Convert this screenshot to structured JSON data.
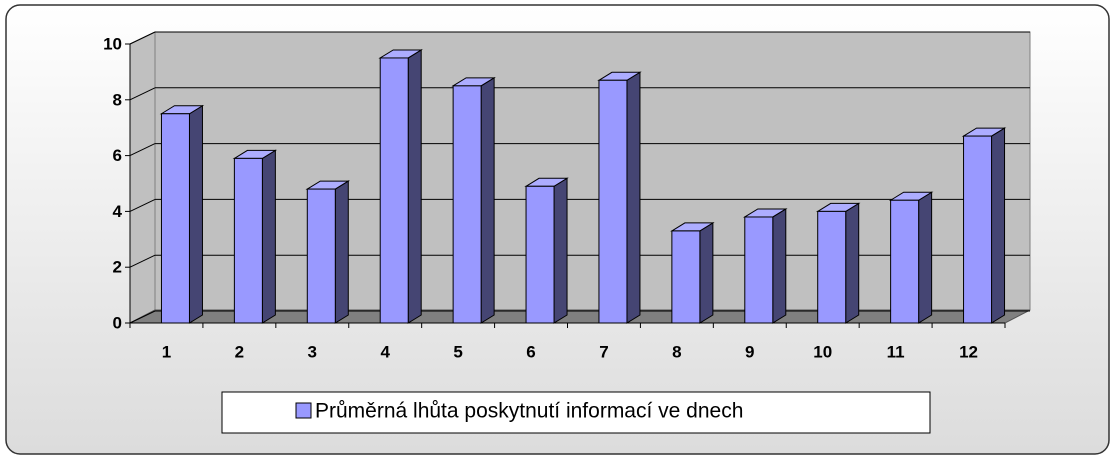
{
  "chart_data": {
    "type": "bar3d",
    "categories": [
      "1",
      "2",
      "3",
      "4",
      "5",
      "6",
      "7",
      "8",
      "9",
      "10",
      "11",
      "12"
    ],
    "series": [
      {
        "name": "Průměrná lhůta poskytnutí informací ve dnech",
        "color": "#9999ff",
        "values": [
          7.5,
          5.9,
          4.8,
          9.5,
          8.5,
          4.9,
          8.7,
          3.3,
          3.8,
          4.0,
          4.4,
          6.7
        ]
      }
    ],
    "ylim": [
      0,
      10
    ],
    "yticks": [
      0,
      2,
      4,
      6,
      8,
      10
    ],
    "grid": true,
    "legend": "bottom"
  }
}
